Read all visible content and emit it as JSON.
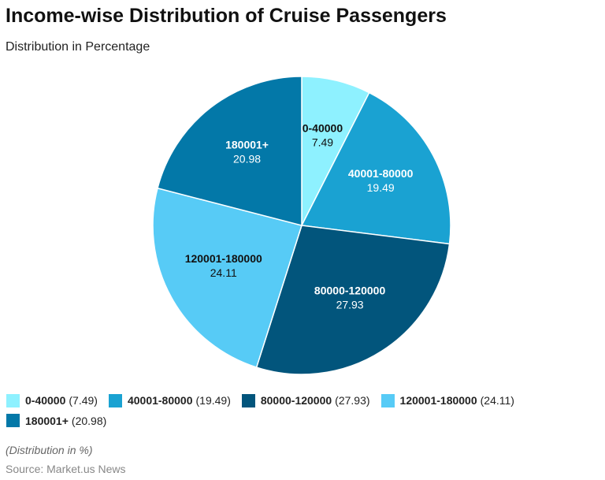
{
  "title": "Income-wise Distribution of Cruise Passengers",
  "subtitle": "Distribution in Percentage",
  "note": "(Distribution in %)",
  "source": "Source: Market.us News",
  "chart_data": {
    "type": "pie",
    "title": "Income-wise Distribution of Cruise Passengers",
    "subtitle": "Distribution in Percentage",
    "legend": "bottom",
    "slices": [
      {
        "label": "0-40000",
        "value": 7.49,
        "value_text": "7.49",
        "legend_value": "(7.49)",
        "color": "#8ef1ff",
        "text_color": "#111111"
      },
      {
        "label": "40001-80000",
        "value": 19.49,
        "value_text": "19.49",
        "legend_value": "(19.49)",
        "color": "#1aa2d2",
        "text_color": "#ffffff"
      },
      {
        "label": "80000-120000",
        "value": 27.93,
        "value_text": "27.93",
        "legend_value": "(27.93)",
        "color": "#02557c",
        "text_color": "#ffffff"
      },
      {
        "label": "120001-180000",
        "value": 24.11,
        "value_text": "24.11",
        "legend_value": "(24.11)",
        "color": "#57cbf6",
        "text_color": "#111111"
      },
      {
        "label": "180001+",
        "value": 20.98,
        "value_text": "20.98",
        "legend_value": "(20.98)",
        "color": "#0378a8",
        "text_color": "#ffffff"
      }
    ]
  }
}
